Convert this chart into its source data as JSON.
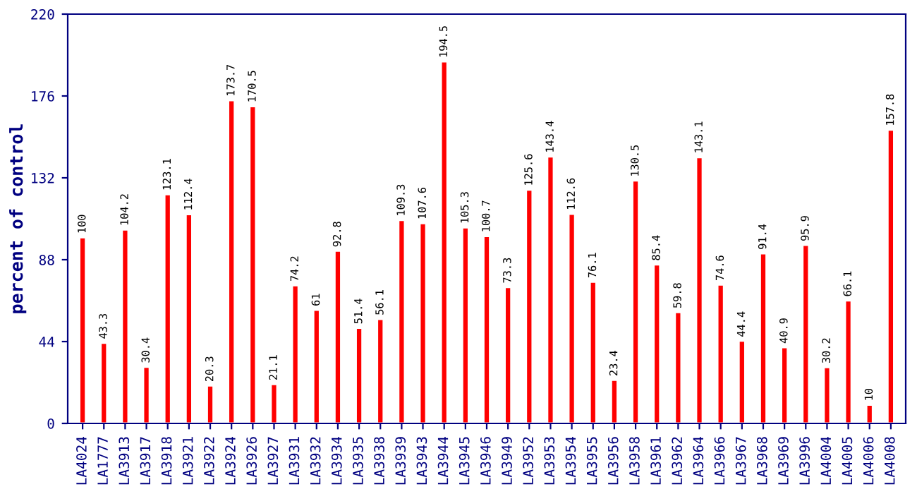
{
  "chart_data": {
    "type": "bar",
    "ylabel": "percent of control",
    "categories": [
      "LA4024",
      "LA1777",
      "LA3913",
      "LA3917",
      "LA3918",
      "LA3921",
      "LA3922",
      "LA3924",
      "LA3926",
      "LA3927",
      "LA3931",
      "LA3932",
      "LA3934",
      "LA3935",
      "LA3938",
      "LA3939",
      "LA3943",
      "LA3944",
      "LA3945",
      "LA3946",
      "LA3949",
      "LA3952",
      "LA3953",
      "LA3954",
      "LA3955",
      "LA3956",
      "LA3958",
      "LA3961",
      "LA3962",
      "LA3964",
      "LA3966",
      "LA3967",
      "LA3968",
      "LA3969",
      "LA3996",
      "LA4004",
      "LA4005",
      "LA4006",
      "LA4008"
    ],
    "values": [
      100,
      43.3,
      104.2,
      30.4,
      123.1,
      112.4,
      20.3,
      173.7,
      170.5,
      21.1,
      74.2,
      61,
      92.8,
      51.4,
      56.1,
      109.3,
      107.6,
      194.5,
      105.3,
      100.7,
      73.3,
      125.6,
      143.4,
      112.6,
      76.1,
      23.4,
      130.5,
      85.4,
      59.8,
      143.1,
      74.6,
      44.4,
      91.4,
      40.9,
      95.9,
      30.2,
      66.1,
      10,
      157.8
    ],
    "color": "#ff0000",
    "data_labels": true,
    "ylim": [
      0,
      220
    ],
    "yticks": [
      0,
      44,
      88,
      132,
      176,
      220
    ],
    "grid": false,
    "legend": false
  }
}
